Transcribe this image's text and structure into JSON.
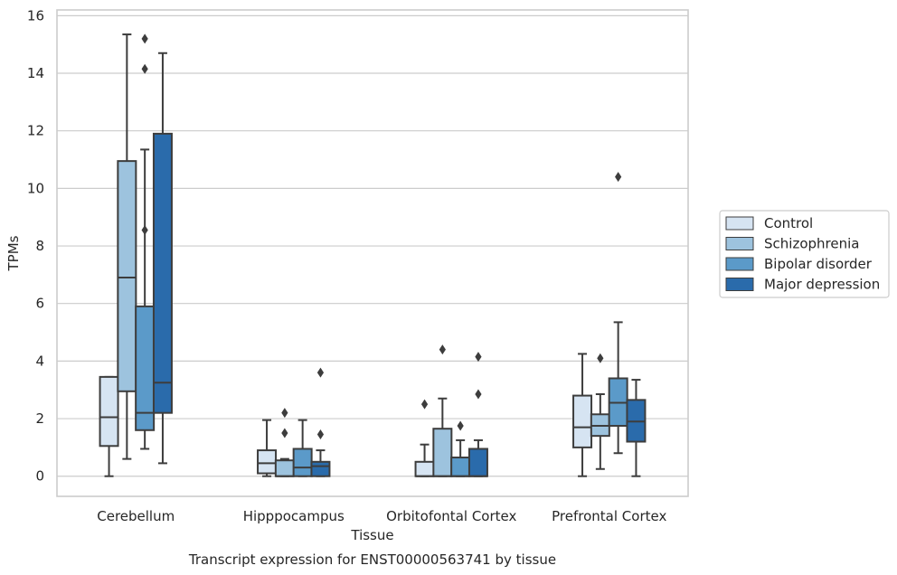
{
  "chart_data": {
    "type": "box",
    "title": "",
    "caption": "Transcript expression for ENST00000563741 by tissue",
    "xlabel": "Tissue",
    "ylabel": "TPMs",
    "ylim": [
      -0.7,
      16.2
    ],
    "yticks": [
      0,
      2,
      4,
      6,
      8,
      10,
      12,
      14,
      16
    ],
    "grid": "horizontal",
    "legend_position": "right",
    "categories": [
      "Cerebellum",
      "Hipppocampus",
      "Orbitofontal Cortex",
      "Prefrontal Cortex"
    ],
    "series": [
      {
        "name": "Control",
        "color": "#d6e4f2",
        "boxes": [
          {
            "min": 0.0,
            "q1": 1.05,
            "median": 2.05,
            "q3": 3.45,
            "max": 3.45,
            "outliers": []
          },
          {
            "min": 0.0,
            "q1": 0.1,
            "median": 0.45,
            "q3": 0.9,
            "max": 1.95,
            "outliers": []
          },
          {
            "min": 0.0,
            "q1": 0.0,
            "median": 0.0,
            "q3": 0.5,
            "max": 1.1,
            "outliers": [
              2.5
            ]
          },
          {
            "min": 0.0,
            "q1": 1.0,
            "median": 1.7,
            "q3": 2.8,
            "max": 4.25,
            "outliers": []
          }
        ]
      },
      {
        "name": "Schizophrenia",
        "color": "#9dc3de",
        "boxes": [
          {
            "min": 0.6,
            "q1": 2.95,
            "median": 6.9,
            "q3": 10.95,
            "max": 15.35,
            "outliers": []
          },
          {
            "min": 0.0,
            "q1": 0.0,
            "median": 0.0,
            "q3": 0.55,
            "max": 0.6,
            "outliers": [
              1.5,
              2.2
            ]
          },
          {
            "min": 0.0,
            "q1": 0.0,
            "median": 0.0,
            "q3": 1.65,
            "max": 2.7,
            "outliers": [
              4.4
            ]
          },
          {
            "min": 0.25,
            "q1": 1.4,
            "median": 1.75,
            "q3": 2.15,
            "max": 2.85,
            "outliers": [
              4.1
            ]
          }
        ]
      },
      {
        "name": "Bipolar disorder",
        "color": "#5b9ac9",
        "boxes": [
          {
            "min": 0.95,
            "q1": 1.6,
            "median": 2.2,
            "q3": 5.9,
            "max": 11.35,
            "outliers": [
              8.55,
              14.15,
              15.2
            ]
          },
          {
            "min": 0.0,
            "q1": 0.0,
            "median": 0.3,
            "q3": 0.95,
            "max": 1.95,
            "outliers": []
          },
          {
            "min": 0.0,
            "q1": 0.0,
            "median": 0.0,
            "q3": 0.65,
            "max": 1.25,
            "outliers": [
              1.75
            ]
          },
          {
            "min": 0.8,
            "q1": 1.75,
            "median": 2.55,
            "q3": 3.4,
            "max": 5.35,
            "outliers": [
              10.4
            ]
          }
        ]
      },
      {
        "name": "Major depression",
        "color": "#2a6bab",
        "boxes": [
          {
            "min": 0.45,
            "q1": 2.2,
            "median": 3.25,
            "q3": 11.9,
            "max": 14.7,
            "outliers": []
          },
          {
            "min": 0.0,
            "q1": 0.0,
            "median": 0.35,
            "q3": 0.5,
            "max": 0.9,
            "outliers": [
              1.45,
              3.6
            ]
          },
          {
            "min": 0.0,
            "q1": 0.0,
            "median": 0.0,
            "q3": 0.95,
            "max": 1.25,
            "outliers": [
              2.85,
              4.15
            ]
          },
          {
            "min": 0.0,
            "q1": 1.2,
            "median": 1.9,
            "q3": 2.65,
            "max": 3.35,
            "outliers": []
          }
        ]
      }
    ]
  }
}
